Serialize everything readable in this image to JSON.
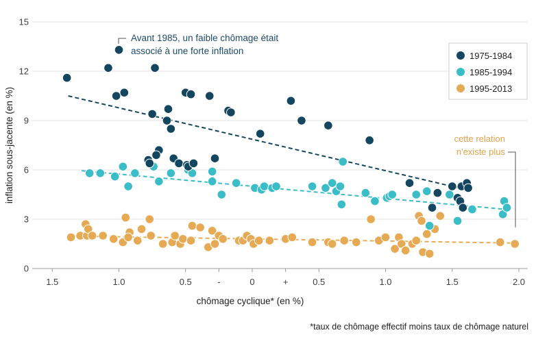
{
  "chart_data": {
    "type": "scatter",
    "xlabel": "chômage cyclique* (en %)",
    "ylabel": "inflation sous-jacente (en %)",
    "footnote": "*taux de chômage effectif moins taux de chômage naturel",
    "xlim": [
      -1.7,
      2.05
    ],
    "ylim": [
      0,
      15
    ],
    "x_ticks": [
      {
        "v": -1.5,
        "label": "1.5"
      },
      {
        "v": -1.0,
        "label": "1.0"
      },
      {
        "v": -0.5,
        "label": "0.5"
      },
      {
        "v": -0.25,
        "label": "-"
      },
      {
        "v": 0,
        "label": "0"
      },
      {
        "v": 0.25,
        "label": "+"
      },
      {
        "v": 0.5,
        "label": "0.5"
      },
      {
        "v": 1.0,
        "label": "1.0"
      },
      {
        "v": 1.5,
        "label": "1.5"
      },
      {
        "v": 2.0,
        "label": "2.0"
      }
    ],
    "y_ticks": [
      0,
      3,
      6,
      9,
      12,
      15
    ],
    "grid": true,
    "legend_position": "top-right",
    "annotations": [
      {
        "lines": [
          "Avant 1985, un faible chômage était",
          "associé à une forte inflation"
        ],
        "color": "#1c4a6a"
      },
      {
        "lines": [
          "cette relation",
          "n'existe plus"
        ],
        "color": "#e3a24a"
      }
    ],
    "series": [
      {
        "name": "1975-1984",
        "color": "#14465f",
        "trend": [
          [
            -1.38,
            10.5
          ],
          [
            1.55,
            4.9
          ]
        ],
        "points": [
          [
            -1.39,
            11.6
          ],
          [
            -1.0,
            13.3
          ],
          [
            -1.08,
            12.2
          ],
          [
            -0.73,
            12.2
          ],
          [
            -1.02,
            10.5
          ],
          [
            -0.96,
            10.7
          ],
          [
            -0.5,
            10.7
          ],
          [
            -0.46,
            10.6
          ],
          [
            -0.32,
            10.5
          ],
          [
            -0.63,
            9.7
          ],
          [
            -0.75,
            9.4
          ],
          [
            -0.64,
            9.0
          ],
          [
            -0.61,
            8.5
          ],
          [
            -0.18,
            9.6
          ],
          [
            -0.16,
            9.5
          ],
          [
            0.29,
            10.2
          ],
          [
            0.37,
            9.0
          ],
          [
            0.57,
            8.7
          ],
          [
            0.06,
            8.2
          ],
          [
            0.88,
            7.8
          ],
          [
            -0.7,
            7.2
          ],
          [
            -0.72,
            6.9
          ],
          [
            -0.78,
            6.6
          ],
          [
            -0.77,
            6.4
          ],
          [
            -0.59,
            6.7
          ],
          [
            -0.55,
            6.4
          ],
          [
            -0.49,
            6.3
          ],
          [
            -0.48,
            6.2
          ],
          [
            -0.44,
            6.4
          ],
          [
            -0.28,
            6.7
          ],
          [
            1.18,
            5.2
          ],
          [
            1.5,
            5.0
          ],
          [
            1.57,
            5.0
          ],
          [
            1.61,
            5.2
          ],
          [
            1.62,
            4.9
          ],
          [
            1.39,
            4.6
          ],
          [
            1.54,
            4.3
          ],
          [
            1.56,
            4.1
          ],
          [
            1.35,
            3.7
          ],
          [
            1.58,
            3.7
          ]
        ]
      },
      {
        "name": "1985-1994",
        "color": "#3bbdc7",
        "trend": [
          [
            -1.28,
            5.95
          ],
          [
            1.9,
            3.6
          ]
        ],
        "points": [
          [
            -1.22,
            5.8
          ],
          [
            -1.14,
            5.8
          ],
          [
            -1.03,
            5.6
          ],
          [
            -0.97,
            6.2
          ],
          [
            -0.93,
            5.0
          ],
          [
            -0.88,
            5.8
          ],
          [
            -0.74,
            6.2
          ],
          [
            -0.7,
            5.3
          ],
          [
            -0.61,
            5.8
          ],
          [
            -0.48,
            6.0
          ],
          [
            -0.45,
            5.8
          ],
          [
            -0.3,
            5.9
          ],
          [
            -0.3,
            5.3
          ],
          [
            -0.23,
            4.5
          ],
          [
            -0.12,
            5.2
          ],
          [
            0.02,
            4.9
          ],
          [
            0.07,
            4.8
          ],
          [
            0.09,
            5.0
          ],
          [
            0.15,
            4.9
          ],
          [
            0.18,
            5.0
          ],
          [
            0.45,
            5.0
          ],
          [
            0.55,
            4.9
          ],
          [
            0.6,
            5.2
          ],
          [
            0.63,
            4.7
          ],
          [
            0.66,
            5.0
          ],
          [
            0.67,
            3.9
          ],
          [
            0.68,
            6.5
          ],
          [
            0.85,
            4.6
          ],
          [
            0.92,
            4.1
          ],
          [
            1.01,
            4.3
          ],
          [
            1.03,
            4.4
          ],
          [
            1.05,
            4.5
          ],
          [
            1.23,
            4.5
          ],
          [
            1.31,
            4.7
          ],
          [
            1.33,
            2.6
          ],
          [
            1.48,
            4.5
          ],
          [
            1.54,
            2.9
          ],
          [
            1.65,
            3.6
          ],
          [
            1.88,
            3.3
          ],
          [
            1.89,
            4.1
          ],
          [
            1.91,
            3.7
          ]
        ]
      },
      {
        "name": "1995-2013",
        "color": "#e6aa55",
        "trend": [
          [
            -1.38,
            1.98
          ],
          [
            1.97,
            1.55
          ]
        ],
        "points": [
          [
            -1.36,
            1.9
          ],
          [
            -1.29,
            2.0
          ],
          [
            -1.25,
            2.7
          ],
          [
            -1.24,
            2.0
          ],
          [
            -1.23,
            2.4
          ],
          [
            -1.2,
            2.0
          ],
          [
            -1.12,
            2.0
          ],
          [
            -1.04,
            1.8
          ],
          [
            -0.97,
            1.6
          ],
          [
            -0.95,
            3.1
          ],
          [
            -0.92,
            2.2
          ],
          [
            -0.93,
            1.9
          ],
          [
            -0.86,
            1.7
          ],
          [
            -0.83,
            2.4
          ],
          [
            -0.77,
            3.0
          ],
          [
            -0.76,
            2.0
          ],
          [
            -0.67,
            1.5
          ],
          [
            -0.6,
            1.6
          ],
          [
            -0.58,
            2.0
          ],
          [
            -0.54,
            1.5
          ],
          [
            -0.52,
            1.8
          ],
          [
            -0.46,
            1.7
          ],
          [
            -0.45,
            2.6
          ],
          [
            -0.39,
            2.5
          ],
          [
            -0.33,
            1.3
          ],
          [
            -0.3,
            2.3
          ],
          [
            -0.28,
            1.5
          ],
          [
            -0.25,
            2.0
          ],
          [
            -0.22,
            1.8
          ],
          [
            -0.1,
            1.7
          ],
          [
            -0.07,
            1.7
          ],
          [
            -0.04,
            2.0
          ],
          [
            -0.01,
            1.8
          ],
          [
            0.01,
            1.5
          ],
          [
            0.05,
            1.7
          ],
          [
            0.13,
            1.7
          ],
          [
            0.25,
            1.8
          ],
          [
            0.3,
            1.9
          ],
          [
            0.45,
            1.6
          ],
          [
            0.57,
            1.6
          ],
          [
            0.6,
            1.5
          ],
          [
            0.69,
            1.7
          ],
          [
            0.78,
            1.6
          ],
          [
            0.89,
            3.0
          ],
          [
            0.95,
            1.7
          ],
          [
            1.0,
            1.9
          ],
          [
            1.07,
            1.2
          ],
          [
            1.1,
            1.9
          ],
          [
            1.12,
            1.5
          ],
          [
            1.15,
            1.1
          ],
          [
            1.2,
            1.5
          ],
          [
            1.23,
            1.7
          ],
          [
            1.25,
            3.2
          ],
          [
            1.27,
            2.9
          ],
          [
            1.28,
            1.0
          ],
          [
            1.31,
            2.1
          ],
          [
            1.33,
            0.9
          ],
          [
            1.37,
            2.4
          ],
          [
            1.41,
            3.2
          ],
          [
            1.86,
            1.6
          ],
          [
            1.97,
            1.5
          ]
        ]
      }
    ]
  }
}
